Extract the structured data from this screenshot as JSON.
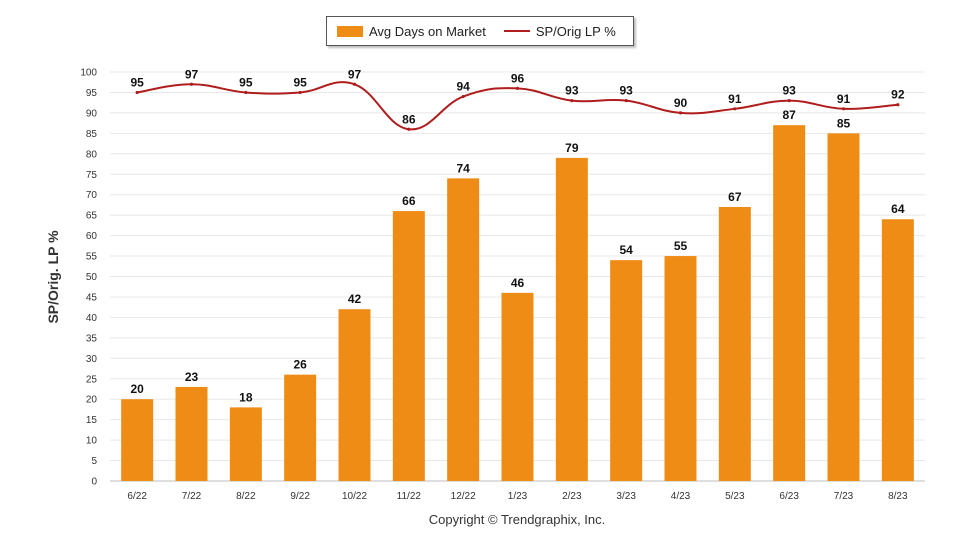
{
  "chart_data": {
    "type": "bar",
    "categories": [
      "6/22",
      "7/22",
      "8/22",
      "9/22",
      "10/22",
      "11/22",
      "12/22",
      "1/23",
      "2/23",
      "3/23",
      "4/23",
      "5/23",
      "6/23",
      "7/23",
      "8/23"
    ],
    "series": [
      {
        "name": "Avg Days on Market",
        "type": "bar",
        "color": "#ef8c15",
        "values": [
          20,
          23,
          18,
          26,
          42,
          66,
          74,
          46,
          79,
          54,
          55,
          67,
          87,
          85,
          64
        ]
      },
      {
        "name": "SP/Orig LP %",
        "type": "line",
        "color": "#b01d1d",
        "values": [
          95,
          97,
          95,
          95,
          97,
          86,
          94,
          96,
          93,
          93,
          90,
          91,
          93,
          91,
          92
        ]
      }
    ],
    "ylabel": "SP/Orig. LP %",
    "ylim": [
      0,
      100
    ],
    "ytick_step": 5,
    "grid": true,
    "legend_position": "top-center"
  },
  "footer": {
    "copyright": "Copyright © Trendgraphix, Inc."
  }
}
